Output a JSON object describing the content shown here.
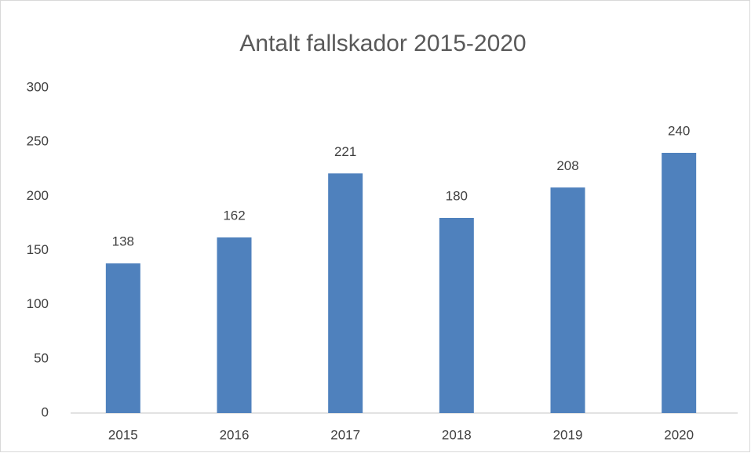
{
  "chart_data": {
    "type": "bar",
    "title": "Antalt fallskador 2015-2020",
    "categories": [
      "2015",
      "2016",
      "2017",
      "2018",
      "2019",
      "2020"
    ],
    "values": [
      138,
      162,
      221,
      180,
      208,
      240
    ],
    "color": "#4f81bd",
    "ylim": [
      0,
      300
    ],
    "yticks": [
      0,
      50,
      100,
      150,
      200,
      250,
      300
    ],
    "grid": false,
    "data_labels": true
  }
}
